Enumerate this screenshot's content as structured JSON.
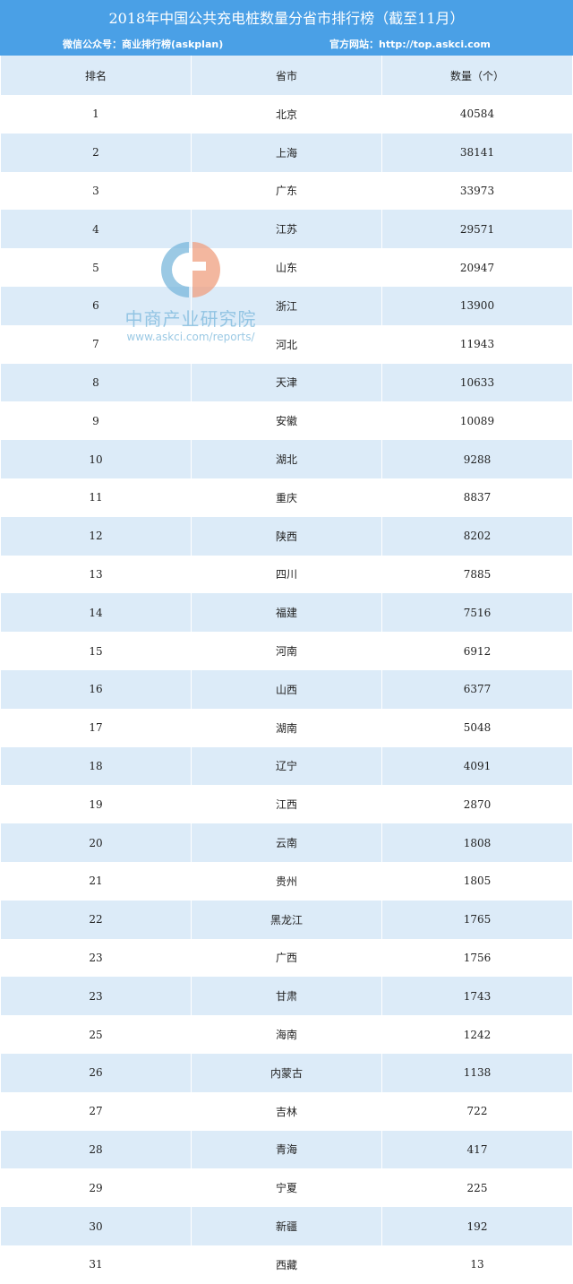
{
  "title": "2018年中国公共充电桩数量分省市排行榜（截至11月）",
  "subtitle_left": "微信公众号：商业排行榜(askplan)",
  "subtitle_right": "官方网站：http://top.askci.com",
  "colors": {
    "banner": "#4aa0e6",
    "stripe": "#dcebf8",
    "watermark_blue": "#7ab8dc",
    "watermark_orange": "#f0a080"
  },
  "headers": [
    "排名",
    "省市",
    "数量（个）"
  ],
  "rows": [
    [
      "1",
      "北京",
      "40584"
    ],
    [
      "2",
      "上海",
      "38141"
    ],
    [
      "3",
      "广东",
      "33973"
    ],
    [
      "4",
      "江苏",
      "29571"
    ],
    [
      "5",
      "山东",
      "20947"
    ],
    [
      "6",
      "浙江",
      "13900"
    ],
    [
      "7",
      "河北",
      "11943"
    ],
    [
      "8",
      "天津",
      "10633"
    ],
    [
      "9",
      "安徽",
      "10089"
    ],
    [
      "10",
      "湖北",
      "9288"
    ],
    [
      "11",
      "重庆",
      "8837"
    ],
    [
      "12",
      "陕西",
      "8202"
    ],
    [
      "13",
      "四川",
      "7885"
    ],
    [
      "14",
      "福建",
      "7516"
    ],
    [
      "15",
      "河南",
      "6912"
    ],
    [
      "16",
      "山西",
      "6377"
    ],
    [
      "17",
      "湖南",
      "5048"
    ],
    [
      "18",
      "辽宁",
      "4091"
    ],
    [
      "19",
      "江西",
      "2870"
    ],
    [
      "20",
      "云南",
      "1808"
    ],
    [
      "21",
      "贵州",
      "1805"
    ],
    [
      "22",
      "黑龙江",
      "1765"
    ],
    [
      "23",
      "广西",
      "1756"
    ],
    [
      "23",
      "甘肃",
      "1743"
    ],
    [
      "25",
      "海南",
      "1242"
    ],
    [
      "26",
      "内蒙古",
      "1138"
    ],
    [
      "27",
      "吉林",
      "722"
    ],
    [
      "28",
      "青海",
      "417"
    ],
    [
      "29",
      "宁夏",
      "225"
    ],
    [
      "30",
      "新疆",
      "192"
    ],
    [
      "31",
      "西藏",
      "13"
    ]
  ],
  "watermark": {
    "name": "中商产业研究院",
    "url": "www.askci.com/reports/"
  }
}
